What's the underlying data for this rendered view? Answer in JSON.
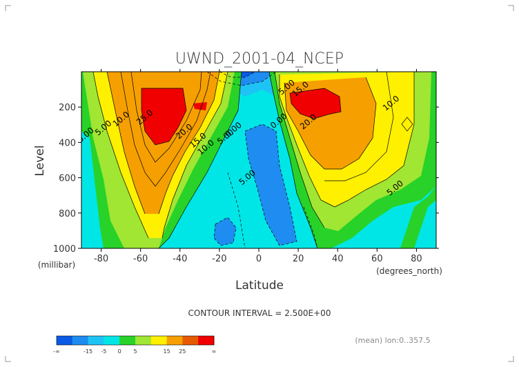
{
  "chart_data": {
    "type": "heatmap",
    "title": "UWND_2001-04_NCEP",
    "xlabel": "Latitude",
    "ylabel": "Level",
    "x_unit": "(degrees_north)",
    "y_unit": "(millibar)",
    "xlim": [
      -90,
      90
    ],
    "ylim": [
      1000,
      0
    ],
    "x_ticks": [
      -80,
      -60,
      -40,
      -20,
      0,
      20,
      40,
      60,
      80
    ],
    "y_ticks": [
      200,
      400,
      600,
      800,
      1000
    ],
    "contour_interval": "CONTOUR INTERVAL = 2.500E+00",
    "mean_note": "(mean) lon:0..357.5",
    "contour_labels": [
      {
        "text": "0.00",
        "lat": -87,
        "lev": 370
      },
      {
        "text": "5.00",
        "lat": -78,
        "lev": 330
      },
      {
        "text": "10.0",
        "lat": -69,
        "lev": 280
      },
      {
        "text": "25.0",
        "lat": -57,
        "lev": 270
      },
      {
        "text": "20.0",
        "lat": -37,
        "lev": 350
      },
      {
        "text": "15.0",
        "lat": -30,
        "lev": 400
      },
      {
        "text": "10.0",
        "lat": -26,
        "lev": 440
      },
      {
        "text": "5.00",
        "lat": -16,
        "lev": 380
      },
      {
        "text": "0.00",
        "lat": -12,
        "lev": 340
      },
      {
        "text": "5.00",
        "lat": -5,
        "lev": 610
      },
      {
        "text": "0.00",
        "lat": 11,
        "lev": 290
      },
      {
        "text": "5.00",
        "lat": 15,
        "lev": 100
      },
      {
        "text": "15.0",
        "lat": 22,
        "lev": 110
      },
      {
        "text": "20.0",
        "lat": 26,
        "lev": 295
      },
      {
        "text": "10.0",
        "lat": 68,
        "lev": 190
      },
      {
        "text": "5.00",
        "lat": 70,
        "lev": 670
      }
    ],
    "legend": {
      "colors": [
        "#0a5ae6",
        "#1e8cf0",
        "#1ec3f5",
        "#00e6e6",
        "#28d228",
        "#a0e632",
        "#fff000",
        "#f5a000",
        "#e65a00",
        "#f00000"
      ],
      "labels": [
        "-∞",
        "-15",
        "-5",
        "0",
        "5",
        "15",
        "25",
        "∞"
      ]
    },
    "grid": false
  }
}
